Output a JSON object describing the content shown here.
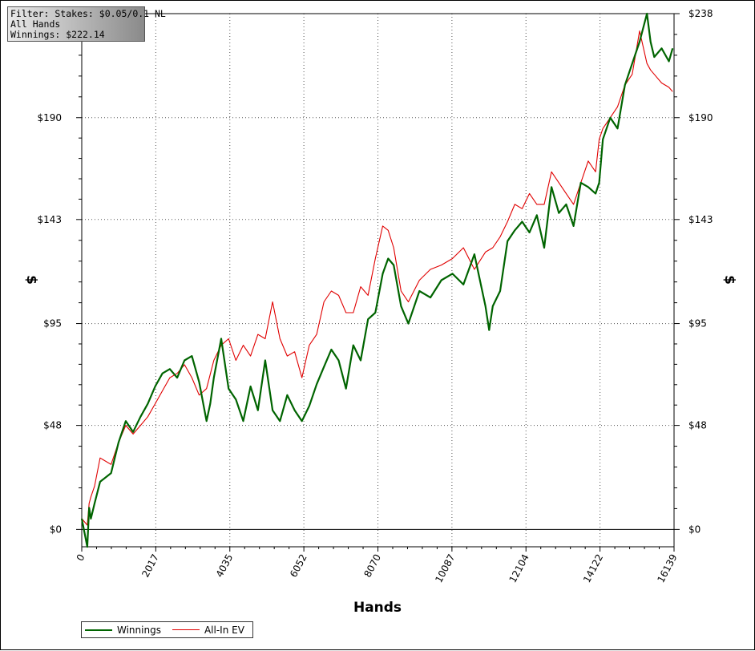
{
  "info_box": {
    "filter": "Filter: Stakes: $0.05/0.1 NL",
    "hands": "All Hands",
    "winnings": "Winnings: $222.14"
  },
  "chart_data": {
    "type": "line",
    "xlabel": "Hands",
    "ylabel": "$",
    "xlim": [
      0,
      16139
    ],
    "ylim": [
      -8,
      238
    ],
    "x_ticks": [
      0,
      2017,
      4035,
      6052,
      8070,
      10087,
      12104,
      14122,
      16139
    ],
    "y_ticks": [
      0,
      48,
      95,
      143,
      190,
      238
    ],
    "y_tick_labels": [
      "$0",
      "$48",
      "$95",
      "$143",
      "$190",
      "$238"
    ],
    "grid": true,
    "legend_position": "bottom-left",
    "colors": {
      "Winnings": "#006400",
      "All-In EV": "#e00000"
    },
    "series": [
      {
        "name": "Winnings",
        "x": [
          0,
          150,
          200,
          250,
          350,
          500,
          800,
          1000,
          1200,
          1400,
          1600,
          1800,
          2000,
          2200,
          2400,
          2600,
          2800,
          3000,
          3200,
          3400,
          3500,
          3600,
          3800,
          4000,
          4200,
          4400,
          4600,
          4800,
          5000,
          5200,
          5400,
          5600,
          5800,
          6000,
          6200,
          6400,
          6600,
          6800,
          7000,
          7200,
          7400,
          7600,
          7800,
          8000,
          8200,
          8350,
          8500,
          8700,
          8900,
          9200,
          9500,
          9800,
          10100,
          10400,
          10700,
          11000,
          11100,
          11200,
          11400,
          11600,
          11800,
          12000,
          12200,
          12400,
          12600,
          12800,
          13000,
          13200,
          13400,
          13600,
          13800,
          14000,
          14100,
          14200,
          14400,
          14600,
          14800,
          15000,
          15200,
          15400,
          15500,
          15600,
          15800,
          16000,
          16100
        ],
        "values": [
          5,
          -8,
          10,
          5,
          12,
          22,
          26,
          40,
          50,
          45,
          52,
          58,
          66,
          72,
          74,
          70,
          78,
          80,
          68,
          50,
          58,
          70,
          88,
          65,
          60,
          50,
          66,
          55,
          78,
          55,
          50,
          62,
          55,
          50,
          57,
          67,
          75,
          83,
          78,
          65,
          85,
          78,
          97,
          100,
          118,
          125,
          122,
          103,
          95,
          110,
          107,
          115,
          118,
          113,
          127,
          103,
          92,
          103,
          110,
          133,
          138,
          142,
          137,
          145,
          130,
          158,
          146,
          150,
          140,
          160,
          158,
          155,
          160,
          180,
          190,
          185,
          205,
          215,
          225,
          238,
          225,
          218,
          222,
          216,
          222
        ]
      },
      {
        "name": "All-In EV",
        "x": [
          0,
          150,
          200,
          250,
          350,
          500,
          800,
          1000,
          1200,
          1400,
          1600,
          1800,
          2000,
          2200,
          2400,
          2600,
          2800,
          3000,
          3200,
          3400,
          3600,
          3800,
          4000,
          4200,
          4400,
          4600,
          4800,
          5000,
          5200,
          5400,
          5600,
          5800,
          6000,
          6200,
          6400,
          6600,
          6800,
          7000,
          7200,
          7400,
          7600,
          7800,
          8000,
          8200,
          8350,
          8500,
          8700,
          8900,
          9200,
          9500,
          9800,
          10100,
          10400,
          10700,
          11000,
          11200,
          11400,
          11600,
          11800,
          12000,
          12200,
          12400,
          12600,
          12800,
          13000,
          13200,
          13400,
          13600,
          13800,
          14000,
          14100,
          14200,
          14400,
          14600,
          14800,
          15000,
          15200,
          15400,
          15500,
          15600,
          15800,
          16000,
          16100
        ],
        "values": [
          5,
          2,
          12,
          15,
          20,
          33,
          30,
          40,
          48,
          44,
          48,
          52,
          58,
          64,
          70,
          72,
          76,
          70,
          62,
          65,
          78,
          85,
          88,
          78,
          85,
          80,
          90,
          88,
          105,
          88,
          80,
          82,
          70,
          85,
          90,
          105,
          110,
          108,
          100,
          100,
          112,
          108,
          125,
          140,
          138,
          130,
          110,
          105,
          115,
          120,
          122,
          125,
          130,
          120,
          128,
          130,
          135,
          142,
          150,
          148,
          155,
          150,
          150,
          165,
          160,
          155,
          150,
          160,
          170,
          165,
          180,
          185,
          190,
          195,
          205,
          210,
          230,
          215,
          212,
          210,
          206,
          204,
          202
        ]
      }
    ]
  },
  "legend": {
    "winnings_label": "Winnings",
    "allin_label": "All-In EV"
  }
}
